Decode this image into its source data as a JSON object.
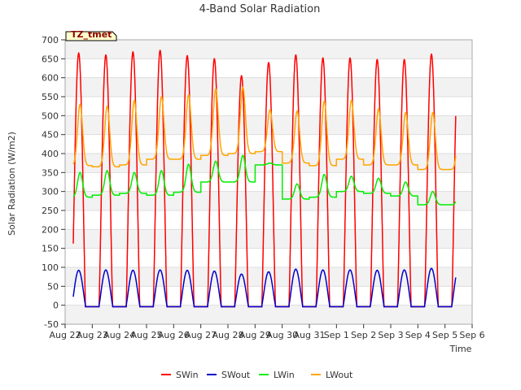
{
  "chart_data": {
    "type": "line",
    "title": "4-Band Solar Radiation",
    "xlabel": "Time",
    "ylabel": "Solar Radiation (W/m2)",
    "ylim": [
      -50,
      700
    ],
    "yticks": [
      -50,
      0,
      50,
      100,
      150,
      200,
      250,
      300,
      350,
      400,
      450,
      500,
      550,
      600,
      650,
      700
    ],
    "xlim": [
      "Aug 22",
      "Sep 6"
    ],
    "categories": [
      "Aug 22",
      "Aug 23",
      "Aug 24",
      "Aug 25",
      "Aug 26",
      "Aug 27",
      "Aug 28",
      "Aug 29",
      "Aug 30",
      "Aug 31",
      "Sep 1",
      "Sep 2",
      "Sep 3",
      "Sep 4",
      "Sep 5",
      "Sep 6"
    ],
    "grid": true,
    "legend_position": "bottom-center",
    "site_label": "TZ_tmet",
    "data_start_day": 0.3,
    "data_end_day": 14.4,
    "series": [
      {
        "name": "SWin",
        "color": "#ff0000",
        "daily_peaks": [
          665,
          660,
          668,
          672,
          658,
          650,
          605,
          640,
          660,
          652,
          652,
          648,
          648,
          662
        ]
      },
      {
        "name": "SWout",
        "color": "#0000cc",
        "daily_peaks": [
          92,
          93,
          92,
          93,
          92,
          90,
          82,
          88,
          95,
          93,
          93,
          92,
          93,
          97
        ]
      },
      {
        "name": "LWin",
        "color": "#00ee00",
        "daily_night": [
          285,
          290,
          295,
          290,
          298,
          325,
          325,
          370,
          280,
          285,
          300,
          295,
          288,
          265
        ],
        "daily_peaks": [
          350,
          355,
          350,
          355,
          372,
          380,
          395,
          375,
          320,
          345,
          340,
          335,
          325,
          300
        ]
      },
      {
        "name": "LWout",
        "color": "#ffa500",
        "daily_night": [
          368,
          365,
          370,
          385,
          385,
          395,
          400,
          405,
          375,
          368,
          385,
          370,
          370,
          358
        ],
        "daily_peaks": [
          530,
          525,
          540,
          550,
          555,
          570,
          575,
          515,
          512,
          538,
          540,
          518,
          508,
          508
        ]
      }
    ]
  }
}
